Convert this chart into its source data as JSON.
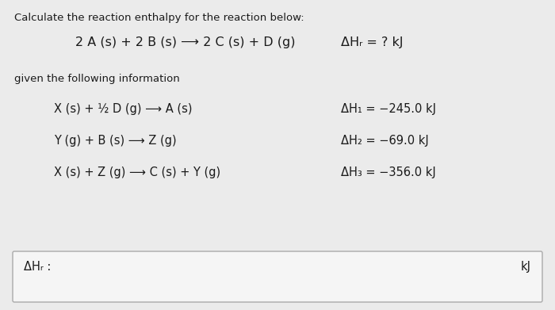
{
  "bg_color": "#e8e8e8",
  "panel_color": "#ebebeb",
  "text_color": "#1a1a1a",
  "title_text": "Calculate the reaction enthalpy for the reaction below:",
  "main_reaction_left": "2 A (s) + 2 B (s) ⟶ 2 C (s) + D (g)",
  "main_reaction_right": "ΔHᵣ = ? kJ",
  "given_text": "given the following information",
  "reactions": [
    {
      "left": "X (s) + ½ D (g) ⟶ A (s)",
      "right": "ΔH₁ = −245.0 kJ"
    },
    {
      "left": "Y (g) + B (s) ⟶ Z (g)",
      "right": "ΔH₂ = −69.0 kJ"
    },
    {
      "left": "X (s) + Z (g) ⟶ C (s) + Y (g)",
      "right": "ΔH₃ = −356.0 kJ"
    }
  ],
  "box_label": "ΔHᵣ :",
  "box_unit": "kJ"
}
